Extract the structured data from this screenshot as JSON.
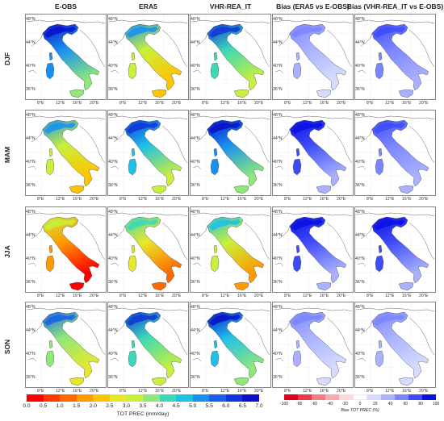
{
  "columns": [
    "E-OBS",
    "ERA5",
    "VHR-REA_IT",
    "Bias (ERA5 vs E-OBS)",
    "Bias (VHR-REA_IT vs E-OBS)"
  ],
  "seasons": [
    "DJF",
    "MAM",
    "JJA",
    "SON"
  ],
  "lat_labels": [
    "48°N",
    "44°N",
    "40°N",
    "36°N"
  ],
  "lon_labels": [
    "8°E",
    "12°E",
    "16°E",
    "20°E"
  ],
  "colorbar_precip": {
    "title": "TOT PREC (mm/day)",
    "ticks": [
      "0.0",
      "0.5",
      "1.0",
      "1.5",
      "2.0",
      "2.5",
      "3.0",
      "3.5",
      "4.0",
      "4.5",
      "5.0",
      "5.5",
      "6.0",
      "6.5",
      "7.0"
    ],
    "colors": [
      "#ff0000",
      "#ff3b00",
      "#ff6a00",
      "#ff9a00",
      "#ffc400",
      "#e8e82a",
      "#c8f03c",
      "#8fe87a",
      "#3cd8b8",
      "#1fc0e8",
      "#1890f0",
      "#1860e8",
      "#1035d8",
      "#0a10c8"
    ]
  },
  "colorbar_bias": {
    "title": "Bias TOT PREC (%)",
    "ticks": [
      "-100",
      "-80",
      "-60",
      "-40",
      "-20",
      "0",
      "20",
      "40",
      "60",
      "80",
      "100"
    ],
    "colors": [
      "#e0001a",
      "#ee3a48",
      "#f57a82",
      "#f9aab0",
      "#fdd7da",
      "#ffffff",
      "#d7dcff",
      "#aab2ff",
      "#7a86ff",
      "#3d4cf8",
      "#0a10e0"
    ]
  },
  "panel_levels": [
    [
      5.0,
      3.2,
      4.2,
      0.3,
      0.55
    ],
    [
      3.2,
      4.6,
      5.0,
      0.7,
      0.65
    ],
    [
      1.5,
      2.6,
      3.1,
      0.75,
      0.75
    ],
    [
      3.8,
      4.3,
      4.9,
      0.45,
      0.35
    ]
  ]
}
